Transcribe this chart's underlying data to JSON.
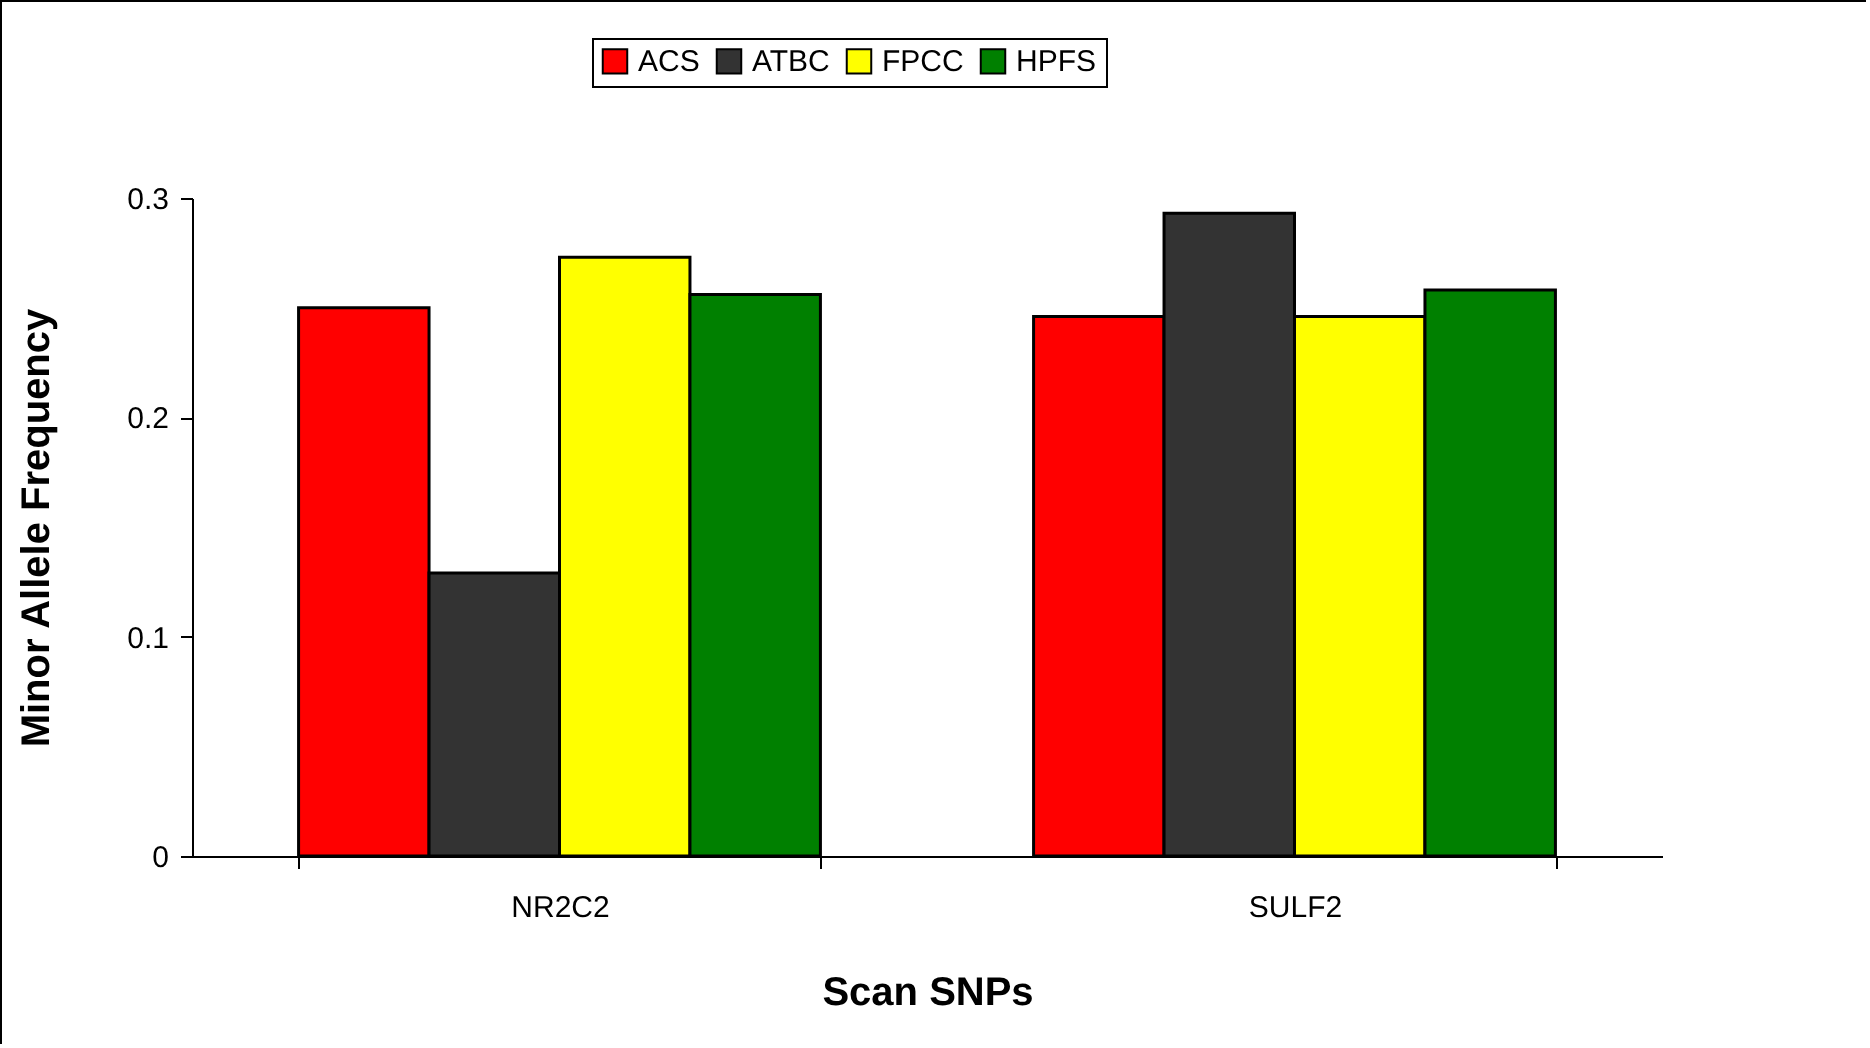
{
  "chart_data": {
    "type": "bar",
    "xlabel": "Scan SNPs",
    "ylabel": "Minor Allele Frequency",
    "categories": [
      "NR2C2",
      "SULF2"
    ],
    "series": [
      {
        "name": "ACS",
        "color": "#ff0000",
        "values": [
          0.25,
          0.246
        ]
      },
      {
        "name": "ATBC",
        "color": "#333333",
        "values": [
          0.129,
          0.293
        ]
      },
      {
        "name": "FPCC",
        "color": "#ffff00",
        "values": [
          0.273,
          0.246
        ]
      },
      {
        "name": "HPFS",
        "color": "#008000",
        "values": [
          0.256,
          0.258
        ]
      }
    ],
    "ylim": [
      0,
      0.3
    ],
    "yticks": [
      0,
      0.1,
      0.2,
      0.3
    ],
    "grid": false,
    "legend": "top"
  }
}
